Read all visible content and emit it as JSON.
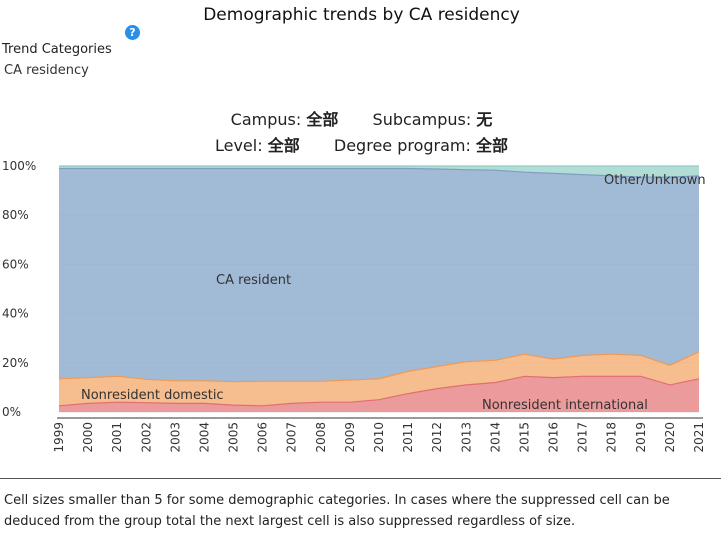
{
  "page": {
    "title": "Demographic trends by CA residency",
    "help_icon": "question-mark-icon",
    "trend_label": "Trend Categories",
    "trend_value": "CA residency",
    "filters": {
      "campus_label": "Campus:",
      "campus_value": "全部",
      "subcampus_label": "Subcampus:",
      "subcampus_value": "无",
      "level_label": "Level:",
      "level_value": "全部",
      "degree_label": "Degree program:",
      "degree_value": "全部"
    },
    "footnote": "Cell sizes smaller than 5 for some demographic categories. In cases where the suppressed cell can be deduced from the group total the next largest cell is also suppressed regardless of size."
  },
  "chart_data": {
    "type": "area",
    "stacked": true,
    "percent": true,
    "x": [
      1999,
      2000,
      2001,
      2002,
      2003,
      2004,
      2005,
      2006,
      2007,
      2008,
      2009,
      2010,
      2011,
      2012,
      2013,
      2014,
      2015,
      2016,
      2017,
      2018,
      2019,
      2020,
      2021
    ],
    "ylim": [
      0,
      100
    ],
    "yticks": [
      "0%",
      "20%",
      "40%",
      "60%",
      "80%",
      "100%"
    ],
    "series": [
      {
        "name": "Nonresident international",
        "color": "#e8898b",
        "values": [
          2.5,
          3.5,
          4,
          3.8,
          3.5,
          3.5,
          2.8,
          2.5,
          3.5,
          4,
          4,
          5,
          7.5,
          9.5,
          11,
          12,
          14.5,
          14,
          14.5,
          14.5,
          14.5,
          11,
          13.5
        ]
      },
      {
        "name": "Nonresident domestic",
        "color": "#f4b27b",
        "values": [
          11,
          10.5,
          10.5,
          9.5,
          9.2,
          9.2,
          9.5,
          10,
          9,
          8.5,
          9,
          8.5,
          9,
          9,
          9.5,
          9,
          9,
          7.5,
          8.5,
          9,
          8.5,
          8,
          11
        ]
      },
      {
        "name": "CA resident",
        "color": "#91aecf",
        "values": [
          85.5,
          85,
          84.5,
          85.7,
          86.3,
          86.3,
          86.7,
          86.5,
          86.5,
          86.5,
          86,
          85.5,
          82.5,
          80.3,
          78,
          77.3,
          74,
          75.5,
          73.5,
          72.5,
          72.5,
          76.5,
          71.5
        ]
      },
      {
        "name": "Other/Unknown",
        "color": "#a4d6cf",
        "values": [
          1,
          1,
          1,
          1,
          1,
          1,
          1,
          1,
          1,
          1,
          1,
          1,
          1,
          1.2,
          1.5,
          1.7,
          2.5,
          3,
          3.5,
          4,
          4.5,
          4.5,
          4
        ]
      }
    ]
  }
}
